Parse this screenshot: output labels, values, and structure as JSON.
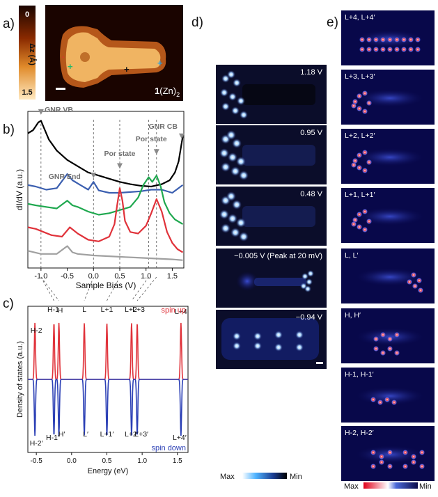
{
  "panels": {
    "a": {
      "label": "a)",
      "colorbar_axis_label": "Δz (Å)",
      "colorbar_ticks": [
        "0",
        "1.5"
      ],
      "compound_label_bold": "1",
      "compound_label_rest": "(Zn)",
      "compound_subscript": "2"
    },
    "b": {
      "label": "b)"
    },
    "c": {
      "label": "c)"
    },
    "d": {
      "label": "d)",
      "maps": [
        {
          "bias_label": "1.18 V"
        },
        {
          "bias_label": "0.95 V"
        },
        {
          "bias_label": "0.48 V"
        },
        {
          "bias_label": "−0.005 V (Peak at 20 mV)"
        },
        {
          "bias_label": "−0.94 V"
        }
      ],
      "colorbar": {
        "max_label": "Max",
        "min_label": "Min"
      }
    },
    "e": {
      "label": "e)",
      "orbitals": [
        {
          "label": "L+4, L+4′"
        },
        {
          "label": "L+3, L+3′"
        },
        {
          "label": "L+2, L+2′"
        },
        {
          "label": "L+1, L+1′"
        },
        {
          "label": "L, L′"
        },
        {
          "label": "H, H′"
        },
        {
          "label": "H-1, H-1′"
        },
        {
          "label": "H-2, H-2′"
        }
      ],
      "colorbar": {
        "max_label": "Max",
        "min_label": "Min"
      }
    }
  },
  "chart_data": [
    {
      "type": "line",
      "panel": "b",
      "xlabel": "Sample Bias (V)",
      "ylabel": "dI/dV (a.u.)",
      "xlim": [
        -1.25,
        1.72
      ],
      "ylim": [
        0,
        10
      ],
      "xticks": [
        -1.0,
        -0.5,
        0.0,
        0.5,
        1.0,
        1.5
      ],
      "xtick_labels": [
        "-1.0",
        "-0.5",
        "0.0",
        "0.5",
        "1.0",
        "1.5"
      ],
      "annotations": [
        {
          "text": "GNR VB",
          "x": -1.0
        },
        {
          "text": "GNR End",
          "x": 0.0
        },
        {
          "text": "Por state",
          "x": 0.5
        },
        {
          "text": "Por state",
          "x": 1.2
        },
        {
          "text": "GNR CB",
          "x": 1.68
        }
      ],
      "dashed_lines_x": [
        -1.0,
        0.0,
        0.5,
        1.05,
        1.2
      ],
      "series": [
        {
          "color": "#000000",
          "x": [
            -1.25,
            -1.15,
            -1.05,
            -1.0,
            -0.95,
            -0.85,
            -0.7,
            -0.5,
            -0.3,
            -0.1,
            0.1,
            0.3,
            0.5,
            0.7,
            0.9,
            1.1,
            1.3,
            1.45,
            1.55,
            1.62,
            1.67,
            1.7
          ],
          "y": [
            8.6,
            8.8,
            9.3,
            9.4,
            9.0,
            8.2,
            7.5,
            6.9,
            6.5,
            6.1,
            5.9,
            5.7,
            5.5,
            5.35,
            5.25,
            5.2,
            5.35,
            5.6,
            6.1,
            6.8,
            7.8,
            8.4
          ]
        },
        {
          "color": "#3b5fb0",
          "x": [
            -1.25,
            -1.1,
            -0.9,
            -0.7,
            -0.5,
            -0.4,
            -0.25,
            -0.1,
            0.0,
            0.1,
            0.3,
            0.5,
            0.7,
            0.9,
            1.1,
            1.3,
            1.5,
            1.7
          ],
          "y": [
            5.3,
            5.2,
            5.0,
            5.1,
            6.0,
            5.6,
            5.3,
            5.0,
            5.5,
            4.95,
            4.8,
            4.8,
            4.85,
            4.9,
            5.0,
            5.0,
            4.8,
            5.3
          ]
        },
        {
          "color": "#1fa84f",
          "x": [
            -1.25,
            -1.1,
            -0.9,
            -0.7,
            -0.5,
            -0.4,
            -0.3,
            -0.1,
            0.1,
            0.3,
            0.5,
            0.7,
            0.85,
            0.95,
            1.05,
            1.12,
            1.2,
            1.28,
            1.35,
            1.45,
            1.55,
            1.7
          ],
          "y": [
            4.1,
            4.0,
            3.9,
            3.8,
            4.3,
            4.0,
            3.9,
            3.6,
            3.4,
            3.5,
            3.7,
            3.9,
            4.5,
            5.3,
            5.8,
            5.5,
            5.9,
            5.2,
            4.2,
            3.5,
            3.1,
            2.8
          ]
        },
        {
          "color": "#e0323a",
          "x": [
            -1.25,
            -1.1,
            -0.95,
            -0.8,
            -0.6,
            -0.45,
            -0.3,
            -0.1,
            0.1,
            0.3,
            0.4,
            0.45,
            0.5,
            0.55,
            0.6,
            0.7,
            0.85,
            1.0,
            1.1,
            1.2,
            1.3,
            1.4,
            1.5,
            1.6,
            1.7
          ],
          "y": [
            2.6,
            2.5,
            2.3,
            2.1,
            2.0,
            2.6,
            2.2,
            1.8,
            1.7,
            2.0,
            2.8,
            4.0,
            5.1,
            4.3,
            3.0,
            2.3,
            2.2,
            2.7,
            3.5,
            4.4,
            3.6,
            2.3,
            1.6,
            1.2,
            1.0
          ]
        },
        {
          "color": "#a0a0a0",
          "x": [
            -1.25,
            -1.0,
            -0.7,
            -0.5,
            -0.4,
            -0.3,
            0.0,
            0.3,
            0.6,
            0.9,
            1.2,
            1.5,
            1.7
          ],
          "y": [
            1.1,
            0.9,
            0.9,
            1.4,
            1.0,
            0.9,
            0.8,
            0.75,
            0.7,
            0.65,
            0.6,
            0.55,
            0.5
          ]
        }
      ]
    },
    {
      "type": "line",
      "panel": "c",
      "xlabel": "Energy (eV)",
      "ylabel": "Density of states (a.u.)",
      "xlim": [
        -0.62,
        1.65
      ],
      "ylim": [
        -1.1,
        1.1
      ],
      "xticks": [
        -0.5,
        0.0,
        0.5,
        1.0,
        1.5
      ],
      "xtick_labels": [
        "-0.5",
        "0.0",
        "0.5",
        "1.0",
        "1.5"
      ],
      "series": [
        {
          "name": "spin up",
          "color": "#e0323a",
          "peaks_x": [
            -0.52,
            -0.25,
            -0.18,
            0.18,
            0.5,
            0.85,
            0.93,
            1.55
          ],
          "peak_labels": [
            "H-2",
            "H-1",
            "H",
            "L",
            "L+1",
            "L+2",
            "L+3",
            "L+4"
          ],
          "peak_height": 1.0
        },
        {
          "name": "spin down",
          "color": "#2b3fb5",
          "peaks_x": [
            -0.52,
            -0.25,
            -0.18,
            0.18,
            0.5,
            0.85,
            0.93,
            1.55
          ],
          "peak_labels": [
            "H-2′",
            "H-1′",
            "H′",
            "L′",
            "L+1′",
            "L+2′",
            "L+3′",
            "L+4′"
          ],
          "peak_height": -1.0
        }
      ],
      "legend": [
        "spin up",
        "spin down"
      ]
    }
  ]
}
